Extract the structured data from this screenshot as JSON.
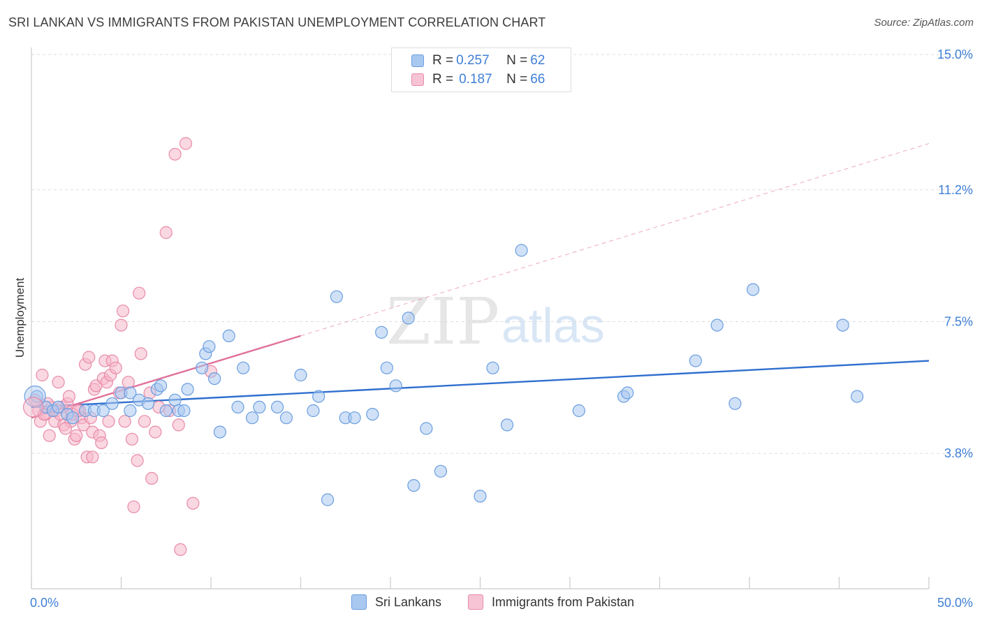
{
  "title": "SRI LANKAN VS IMMIGRANTS FROM PAKISTAN UNEMPLOYMENT CORRELATION CHART",
  "source": "Source: ZipAtlas.com",
  "watermark": {
    "zip": "ZIP",
    "atlas": "atlas"
  },
  "legend_top": {
    "series1": {
      "r_label": "R = ",
      "r_value": "0.257",
      "n_label": "N = ",
      "n_value": "62"
    },
    "series2": {
      "r_label": "R = ",
      "r_value": "0.187",
      "n_label": "N = ",
      "n_value": "66"
    }
  },
  "colors": {
    "blue_fill": "#a9c8f0",
    "blue_stroke": "#6a9ee0",
    "blue_line": "#2f6fcf",
    "pink_fill": "#f6b8cb",
    "pink_stroke": "#e88aa8",
    "pink_line": "#e0709a",
    "grid": "#dddddd",
    "tick_label": "#3f7fd6",
    "axis": "#cccccc"
  },
  "chart_data": {
    "type": "scatter",
    "title": "SRI LANKAN VS IMMIGRANTS FROM PAKISTAN UNEMPLOYMENT CORRELATION CHART",
    "xlabel": "",
    "ylabel": "Unemployment",
    "xlim": [
      0,
      50
    ],
    "ylim": [
      0,
      15
    ],
    "x_tick_labels": [
      "0.0%",
      "50.0%"
    ],
    "y_ticks": [
      3.8,
      7.5,
      11.2,
      15.0
    ],
    "y_tick_labels": [
      "3.8%",
      "7.5%",
      "11.2%",
      "15.0%"
    ],
    "grid": true,
    "legend_position": "top-center",
    "series": [
      {
        "name": "Sri Lankans",
        "color": "blue",
        "trend": {
          "x": [
            0,
            50
          ],
          "y": [
            5.1,
            6.4
          ]
        },
        "points": [
          {
            "x": 0.3,
            "y": 5.4
          },
          {
            "x": 0.8,
            "y": 5.1
          },
          {
            "x": 1.2,
            "y": 5.0
          },
          {
            "x": 1.5,
            "y": 5.1
          },
          {
            "x": 2.0,
            "y": 4.9
          },
          {
            "x": 2.3,
            "y": 4.8
          },
          {
            "x": 3.0,
            "y": 5.0
          },
          {
            "x": 3.5,
            "y": 5.0
          },
          {
            "x": 4.0,
            "y": 5.0
          },
          {
            "x": 4.5,
            "y": 5.2
          },
          {
            "x": 5.0,
            "y": 5.5
          },
          {
            "x": 5.5,
            "y": 5.5
          },
          {
            "x": 5.5,
            "y": 5.0
          },
          {
            "x": 6.0,
            "y": 5.3
          },
          {
            "x": 6.5,
            "y": 5.2
          },
          {
            "x": 7.0,
            "y": 5.6
          },
          {
            "x": 7.2,
            "y": 5.7
          },
          {
            "x": 7.5,
            "y": 5.0
          },
          {
            "x": 8.0,
            "y": 5.3
          },
          {
            "x": 8.2,
            "y": 5.0
          },
          {
            "x": 8.5,
            "y": 5.0
          },
          {
            "x": 8.7,
            "y": 5.6
          },
          {
            "x": 9.5,
            "y": 6.2
          },
          {
            "x": 9.7,
            "y": 6.6
          },
          {
            "x": 9.9,
            "y": 6.8
          },
          {
            "x": 10.2,
            "y": 5.9
          },
          {
            "x": 10.5,
            "y": 4.4
          },
          {
            "x": 11.0,
            "y": 7.1
          },
          {
            "x": 11.5,
            "y": 5.1
          },
          {
            "x": 11.8,
            "y": 6.2
          },
          {
            "x": 12.3,
            "y": 4.8
          },
          {
            "x": 12.7,
            "y": 5.1
          },
          {
            "x": 13.7,
            "y": 5.1
          },
          {
            "x": 14.2,
            "y": 4.8
          },
          {
            "x": 15.0,
            "y": 6.0
          },
          {
            "x": 15.7,
            "y": 5.0
          },
          {
            "x": 16.0,
            "y": 5.4
          },
          {
            "x": 16.5,
            "y": 2.5
          },
          {
            "x": 17.0,
            "y": 8.2
          },
          {
            "x": 17.5,
            "y": 4.8
          },
          {
            "x": 18.0,
            "y": 4.8
          },
          {
            "x": 19.0,
            "y": 4.9
          },
          {
            "x": 19.5,
            "y": 7.2
          },
          {
            "x": 19.8,
            "y": 6.2
          },
          {
            "x": 20.3,
            "y": 5.7
          },
          {
            "x": 21.0,
            "y": 7.6
          },
          {
            "x": 21.3,
            "y": 2.9
          },
          {
            "x": 22.0,
            "y": 4.5
          },
          {
            "x": 22.8,
            "y": 3.3
          },
          {
            "x": 25.0,
            "y": 2.6
          },
          {
            "x": 25.7,
            "y": 6.2
          },
          {
            "x": 26.5,
            "y": 4.6
          },
          {
            "x": 27.3,
            "y": 9.5
          },
          {
            "x": 30.5,
            "y": 5.0
          },
          {
            "x": 33.0,
            "y": 5.4
          },
          {
            "x": 33.2,
            "y": 5.5
          },
          {
            "x": 37.0,
            "y": 6.4
          },
          {
            "x": 38.2,
            "y": 7.4
          },
          {
            "x": 39.2,
            "y": 5.2
          },
          {
            "x": 40.2,
            "y": 8.4
          },
          {
            "x": 45.2,
            "y": 7.4
          },
          {
            "x": 46.0,
            "y": 5.4
          }
        ]
      },
      {
        "name": "Immigrants from Pakistan",
        "color": "pink",
        "trend": {
          "x": [
            0,
            15
          ],
          "y": [
            4.8,
            7.1
          ]
        },
        "trend_extension": {
          "x": [
            15,
            50
          ],
          "y": [
            7.1,
            12.5
          ]
        },
        "points": [
          {
            "x": 0.2,
            "y": 5.3
          },
          {
            "x": 0.4,
            "y": 5.0
          },
          {
            "x": 0.5,
            "y": 4.7
          },
          {
            "x": 0.6,
            "y": 6.0
          },
          {
            "x": 0.8,
            "y": 4.9
          },
          {
            "x": 1.0,
            "y": 4.3
          },
          {
            "x": 1.1,
            "y": 5.1
          },
          {
            "x": 1.3,
            "y": 4.7
          },
          {
            "x": 1.4,
            "y": 5.0
          },
          {
            "x": 1.5,
            "y": 5.8
          },
          {
            "x": 1.7,
            "y": 5.1
          },
          {
            "x": 1.8,
            "y": 4.6
          },
          {
            "x": 2.0,
            "y": 5.2
          },
          {
            "x": 2.1,
            "y": 5.4
          },
          {
            "x": 2.2,
            "y": 4.7
          },
          {
            "x": 2.4,
            "y": 4.2
          },
          {
            "x": 2.5,
            "y": 4.3
          },
          {
            "x": 2.7,
            "y": 5.0
          },
          {
            "x": 2.8,
            "y": 4.8
          },
          {
            "x": 2.9,
            "y": 4.6
          },
          {
            "x": 3.0,
            "y": 6.3
          },
          {
            "x": 3.2,
            "y": 6.5
          },
          {
            "x": 3.3,
            "y": 4.8
          },
          {
            "x": 3.4,
            "y": 4.4
          },
          {
            "x": 3.5,
            "y": 5.6
          },
          {
            "x": 3.6,
            "y": 5.7
          },
          {
            "x": 3.8,
            "y": 4.3
          },
          {
            "x": 3.9,
            "y": 4.1
          },
          {
            "x": 4.0,
            "y": 5.9
          },
          {
            "x": 4.1,
            "y": 6.4
          },
          {
            "x": 4.2,
            "y": 5.8
          },
          {
            "x": 4.3,
            "y": 4.7
          },
          {
            "x": 4.4,
            "y": 6.0
          },
          {
            "x": 4.5,
            "y": 6.4
          },
          {
            "x": 4.7,
            "y": 6.2
          },
          {
            "x": 4.9,
            "y": 5.5
          },
          {
            "x": 5.0,
            "y": 7.4
          },
          {
            "x": 5.1,
            "y": 7.8
          },
          {
            "x": 5.2,
            "y": 4.7
          },
          {
            "x": 5.4,
            "y": 5.8
          },
          {
            "x": 5.6,
            "y": 4.2
          },
          {
            "x": 5.7,
            "y": 2.3
          },
          {
            "x": 5.9,
            "y": 3.6
          },
          {
            "x": 6.0,
            "y": 8.3
          },
          {
            "x": 6.1,
            "y": 6.6
          },
          {
            "x": 6.3,
            "y": 4.7
          },
          {
            "x": 6.6,
            "y": 5.5
          },
          {
            "x": 6.7,
            "y": 3.1
          },
          {
            "x": 6.9,
            "y": 4.4
          },
          {
            "x": 7.1,
            "y": 5.1
          },
          {
            "x": 7.5,
            "y": 10.0
          },
          {
            "x": 7.7,
            "y": 5.0
          },
          {
            "x": 8.0,
            "y": 12.2
          },
          {
            "x": 8.2,
            "y": 4.6
          },
          {
            "x": 8.3,
            "y": 1.1
          },
          {
            "x": 8.6,
            "y": 12.5
          },
          {
            "x": 9.0,
            "y": 2.4
          },
          {
            "x": 10.0,
            "y": 6.1
          },
          {
            "x": 3.1,
            "y": 3.7
          },
          {
            "x": 3.4,
            "y": 3.7
          },
          {
            "x": 1.6,
            "y": 4.9
          },
          {
            "x": 2.3,
            "y": 4.9
          },
          {
            "x": 0.9,
            "y": 5.2
          },
          {
            "x": 1.9,
            "y": 4.5
          },
          {
            "x": 0.7,
            "y": 4.9
          },
          {
            "x": 2.6,
            "y": 5.0
          }
        ]
      }
    ]
  },
  "legend_bottom": {
    "series1": "Sri Lankans",
    "series2": "Immigrants from Pakistan"
  }
}
